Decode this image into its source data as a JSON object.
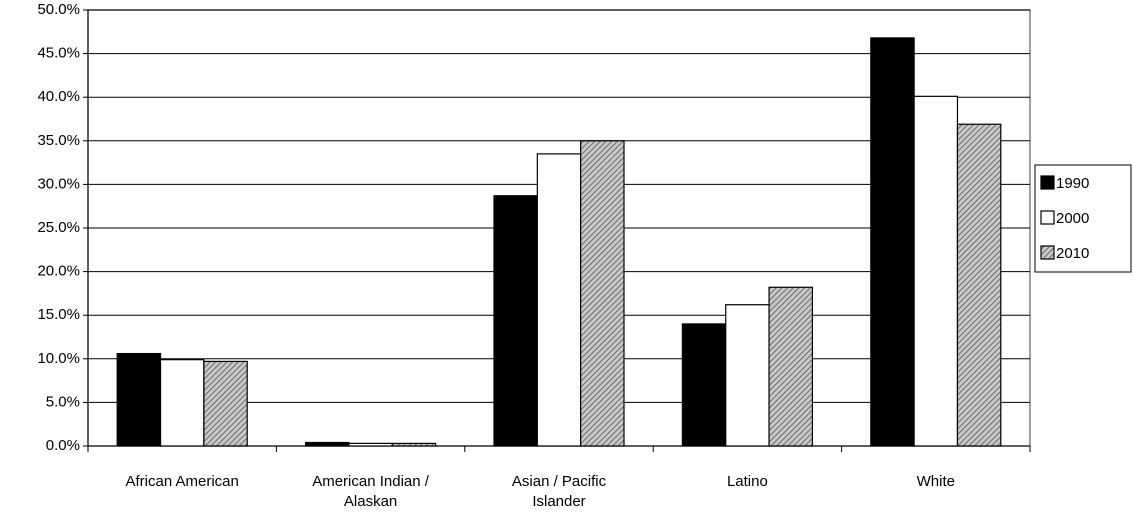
{
  "chart_data": {
    "type": "bar",
    "categories": [
      "African American",
      "American Indian / Alaskan",
      "Asian / Pacific Islander",
      "Latino",
      "White"
    ],
    "series": [
      {
        "name": "1990",
        "color": "#000000",
        "values": [
          10.6,
          0.4,
          28.7,
          14.0,
          46.8
        ]
      },
      {
        "name": "2000",
        "color": "#ffffff",
        "values": [
          9.9,
          0.3,
          33.5,
          16.2,
          40.1
        ]
      },
      {
        "name": "2010",
        "color": "#a0a0a0",
        "pattern": "diagonal",
        "values": [
          9.7,
          0.3,
          35.0,
          18.2,
          36.9
        ]
      }
    ],
    "ylim": [
      0,
      50
    ],
    "yticks": [
      {
        "value": 0,
        "label": "0.0%"
      },
      {
        "value": 5,
        "label": "5.0%"
      },
      {
        "value": 10,
        "label": "10.0%"
      },
      {
        "value": 15,
        "label": "15.0%"
      },
      {
        "value": 20,
        "label": "20.0%"
      },
      {
        "value": 25,
        "label": "25.0%"
      },
      {
        "value": 30,
        "label": "30.0%"
      },
      {
        "value": 35,
        "label": "35.0%"
      },
      {
        "value": 40,
        "label": "40.0%"
      },
      {
        "value": 45,
        "label": "45.0%"
      },
      {
        "value": 50,
        "label": "50.0%"
      }
    ],
    "grid": true,
    "legend": "right"
  }
}
